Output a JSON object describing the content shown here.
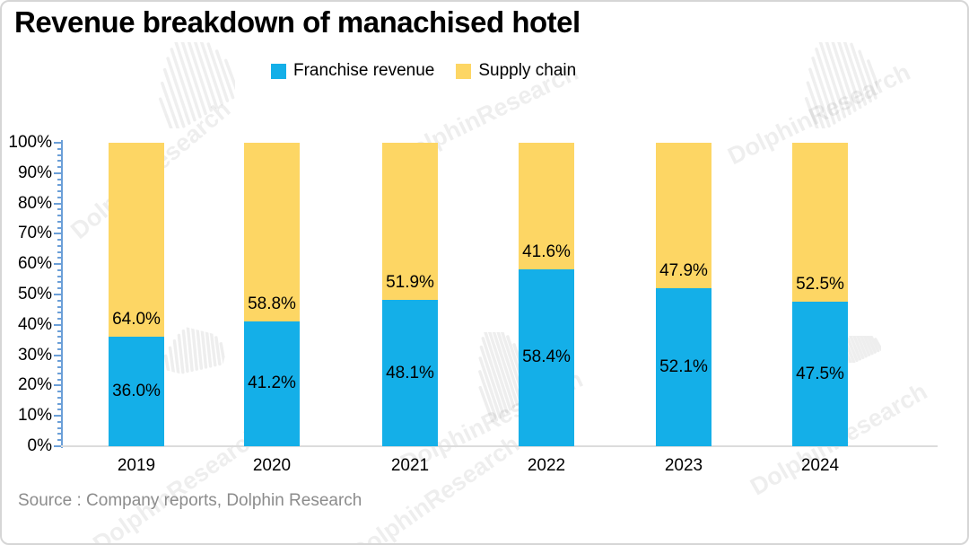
{
  "title": "Revenue breakdown of manachised hotel",
  "source": "Source : Company reports, Dolphin Research",
  "watermark": {
    "text": "DolphinResearch"
  },
  "legend": [
    {
      "label": "Franchise revenue",
      "color": "#14AFE8"
    },
    {
      "label": "Supply chain",
      "color": "#FDD664"
    }
  ],
  "colors": {
    "franchise_blue": "#14AFE8",
    "supply_yellow": "#FDD664",
    "y_axis_blue": "#6B9FD8",
    "x_baseline_gray": "#DCDCDC",
    "source_gray": "#8C8C8C",
    "label_black": "#000000"
  },
  "chart_data": {
    "type": "bar",
    "stacked": true,
    "title": "Revenue breakdown of manachised hotel",
    "categories": [
      "2019",
      "2020",
      "2021",
      "2022",
      "2023",
      "2024"
    ],
    "series": [
      {
        "name": "Franchise revenue",
        "color": "#14AFE8",
        "values": [
          36.0,
          41.2,
          48.1,
          58.4,
          52.1,
          47.5
        ]
      },
      {
        "name": "Supply chain",
        "color": "#FDD664",
        "values": [
          64.0,
          58.8,
          51.9,
          41.6,
          47.9,
          52.5
        ]
      }
    ],
    "value_suffix": "%",
    "value_decimals": 1,
    "xlabel": "",
    "ylabel": "",
    "ylim": [
      0,
      100
    ],
    "y_tick_step": 10,
    "y_minor_tick_step": 2,
    "y_ticks": [
      "0%",
      "10%",
      "20%",
      "30%",
      "40%",
      "50%",
      "60%",
      "70%",
      "80%",
      "90%",
      "100%"
    ],
    "grid": false,
    "legend_position": "top"
  }
}
